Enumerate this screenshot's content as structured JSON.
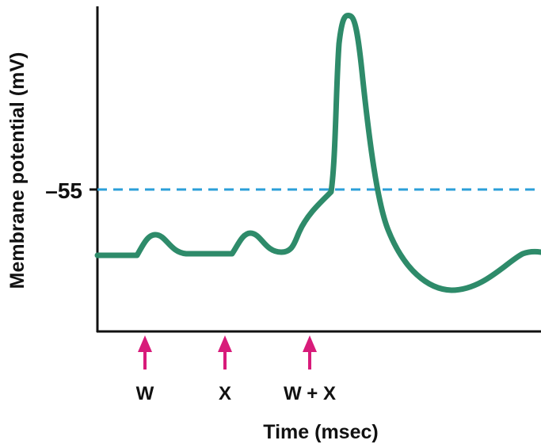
{
  "chart_data": {
    "type": "line",
    "title": "",
    "xlabel": "Time (msec)",
    "ylabel": "Membrane potential (mV)",
    "threshold_label": "–55",
    "stimulus_labels": [
      "W",
      "X",
      "W + X"
    ],
    "colors": {
      "trace": "#2e8b6a",
      "threshold": "#2b9fd8",
      "arrow": "#d81b7a",
      "axis": "#111111"
    },
    "grid": false
  }
}
